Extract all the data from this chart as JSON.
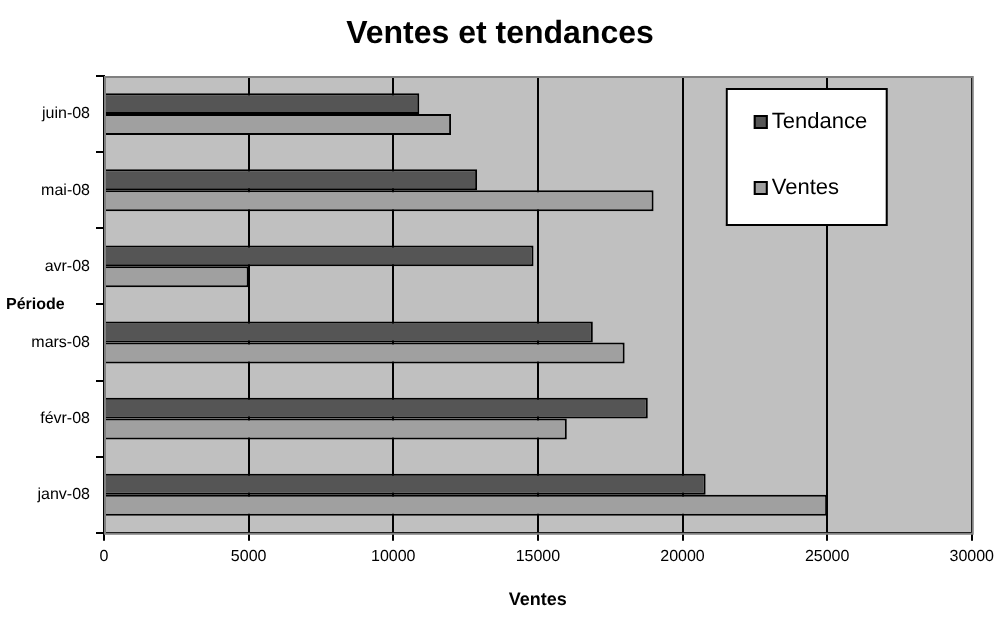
{
  "chart_data": {
    "type": "bar",
    "orientation": "horizontal",
    "title": "Ventes et tendances",
    "xlabel": "Ventes",
    "ylabel": "Période",
    "categories": [
      "juin-08",
      "mai-08",
      "avr-08",
      "mars-08",
      "févr-08",
      "janv-08"
    ],
    "series": [
      {
        "name": "Tendance",
        "color": "#555555",
        "values": [
          10900,
          12900,
          14850,
          16900,
          18800,
          20800
        ]
      },
      {
        "name": "Ventes",
        "color": "#a0a0a0",
        "values": [
          12000,
          19000,
          5000,
          18000,
          16000,
          25000
        ]
      }
    ],
    "xlim": [
      0,
      30000
    ],
    "xticks": [
      0,
      5000,
      10000,
      15000,
      20000,
      25000,
      30000
    ],
    "grid": "x",
    "legend": "top right"
  }
}
